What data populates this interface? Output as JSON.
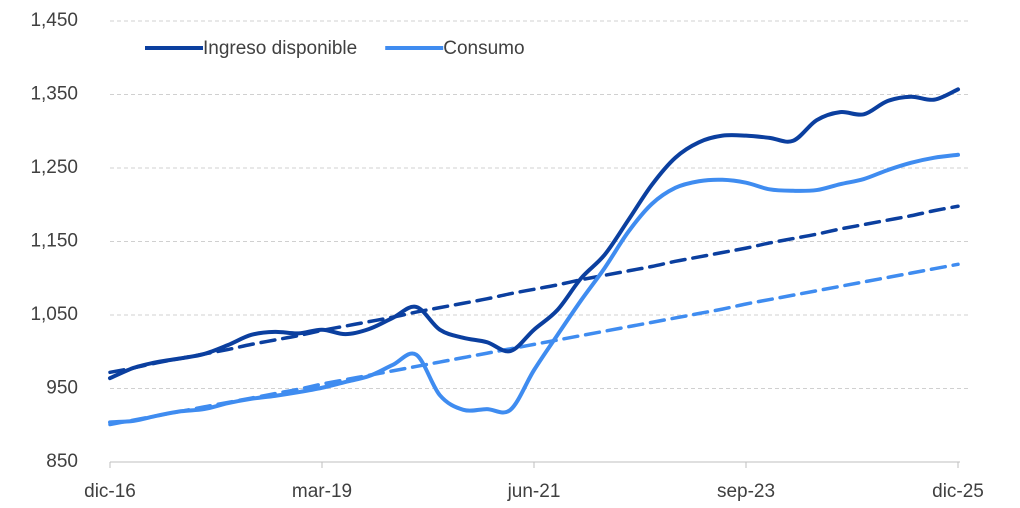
{
  "chart_data": {
    "type": "line",
    "categories": [
      "dic-16",
      null,
      null,
      null,
      null,
      null,
      null,
      null,
      null,
      "mar-19",
      null,
      null,
      null,
      null,
      null,
      null,
      null,
      null,
      "jun-21",
      null,
      null,
      null,
      null,
      null,
      null,
      null,
      null,
      "sep-23",
      null,
      null,
      null,
      null,
      null,
      null,
      null,
      null,
      "dic-25"
    ],
    "series": [
      {
        "name": "Ingreso disponible",
        "color": "#0b3f9f",
        "values": [
          964,
          978,
          986,
          991,
          997,
          1009,
          1023,
          1027,
          1025,
          1030,
          1024,
          1031,
          1046,
          1061,
          1030,
          1019,
          1013,
          1001,
          1030,
          1057,
          1100,
          1132,
          1179,
          1227,
          1264,
          1285,
          1294,
          1294,
          1291,
          1287,
          1315,
          1326,
          1323,
          1341,
          1347,
          1343,
          1357
        ]
      },
      {
        "name": "Consumo",
        "color": "#3f8cf0",
        "values": [
          904,
          906,
          913,
          919,
          922,
          930,
          936,
          940,
          945,
          951,
          959,
          967,
          982,
          996,
          941,
          921,
          922,
          921,
          975,
          1023,
          1070,
          1114,
          1163,
          1201,
          1223,
          1232,
          1234,
          1230,
          1221,
          1219,
          1220,
          1228,
          1235,
          1247,
          1257,
          1264,
          1268
        ]
      }
    ],
    "trends": [
      {
        "color": "#0b3f9f",
        "dashed": true,
        "values": [
          972,
          978,
          985,
          991,
          997,
          1003,
          1010,
          1016,
          1022,
          1029,
          1035,
          1041,
          1047,
          1054,
          1060,
          1066,
          1072,
          1079,
          1085,
          1091,
          1098,
          1104,
          1110,
          1116,
          1123,
          1129,
          1135,
          1141,
          1148,
          1154,
          1160,
          1167,
          1173,
          1179,
          1185,
          1192,
          1198
        ]
      },
      {
        "color": "#3f8cf0",
        "dashed": true,
        "values": [
          901,
          907,
          913,
          919,
          925,
          931,
          937,
          943,
          949,
          956,
          962,
          968,
          974,
          980,
          986,
          992,
          998,
          1004,
          1010,
          1016,
          1022,
          1028,
          1034,
          1040,
          1046,
          1052,
          1058,
          1065,
          1071,
          1077,
          1083,
          1089,
          1095,
          1101,
          1107,
          1113,
          1119
        ]
      }
    ],
    "ylim": [
      850,
      1450
    ],
    "yticks": [
      850,
      950,
      {
        "value": 1050,
        "label": "1,050"
      },
      {
        "value": 1150,
        "label": "1,150"
      },
      {
        "value": 1250,
        "label": "1,250"
      },
      {
        "value": 1350,
        "label": "1,350"
      },
      {
        "value": 1450,
        "label": "1,450"
      }
    ],
    "grid": true,
    "legend": "top-left"
  }
}
